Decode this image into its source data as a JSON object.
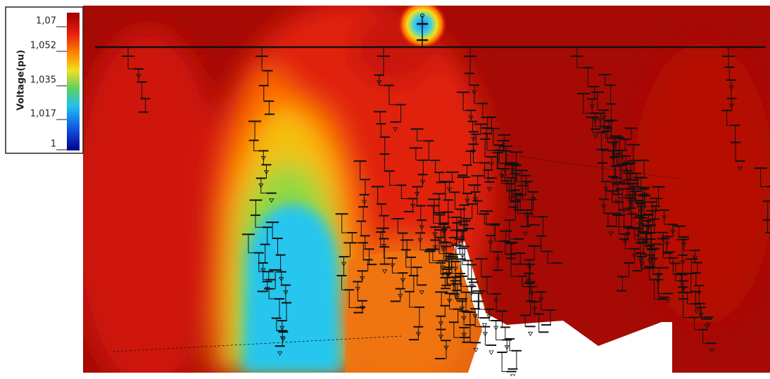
{
  "legend": {
    "title": "Voltage(pu)",
    "ticks": [
      "1,07",
      "1,052",
      "1,035",
      "1,017",
      "1"
    ]
  }
}
